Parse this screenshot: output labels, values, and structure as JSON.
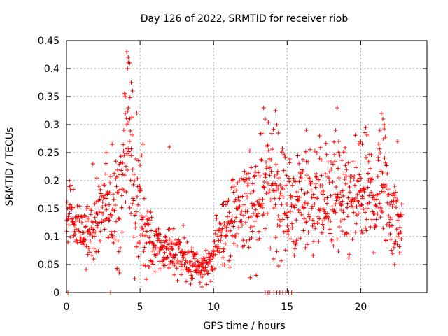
{
  "chart_data": {
    "type": "scatter",
    "title": "Day 126 of 2022, SRMTID for receiver riob",
    "xlabel": "GPS time / hours",
    "ylabel": "SRMTID / TECUs",
    "xlim": [
      0,
      24.5
    ],
    "ylim": [
      0,
      0.45
    ],
    "xticks": [
      0,
      5,
      10,
      15,
      20
    ],
    "yticks": [
      0,
      0.05,
      0.1,
      0.15,
      0.2,
      0.25,
      0.3,
      0.35,
      0.4,
      0.45
    ],
    "xtick_labels": [
      "0",
      "5",
      "10",
      "15",
      "20"
    ],
    "ytick_labels": [
      "0",
      "0.05",
      "0.1",
      "0.15",
      "0.2",
      "0.25",
      "0.3",
      "0.35",
      "0.4",
      "0.45"
    ],
    "grid": true,
    "marker": "plus",
    "color": "#ff0000",
    "series": [
      {
        "envelope": [
          [
            0.0,
            0.13,
            0.02
          ],
          [
            0.3,
            0.15,
            0.03
          ],
          [
            0.7,
            0.12,
            0.025
          ],
          [
            1.2,
            0.11,
            0.025
          ],
          [
            1.8,
            0.12,
            0.03
          ],
          [
            2.3,
            0.14,
            0.035
          ],
          [
            2.8,
            0.16,
            0.04
          ],
          [
            3.2,
            0.15,
            0.04
          ],
          [
            3.6,
            0.18,
            0.05
          ],
          [
            4.0,
            0.25,
            0.08
          ],
          [
            4.3,
            0.28,
            0.09
          ],
          [
            4.6,
            0.18,
            0.06
          ],
          [
            5.0,
            0.14,
            0.05
          ],
          [
            5.5,
            0.1,
            0.035
          ],
          [
            6.0,
            0.08,
            0.025
          ],
          [
            6.5,
            0.075,
            0.02
          ],
          [
            7.0,
            0.08,
            0.02
          ],
          [
            7.5,
            0.07,
            0.02
          ],
          [
            8.0,
            0.065,
            0.02
          ],
          [
            8.5,
            0.055,
            0.018
          ],
          [
            9.0,
            0.045,
            0.015
          ],
          [
            9.5,
            0.045,
            0.015
          ],
          [
            9.9,
            0.05,
            0.015
          ],
          [
            10.3,
            0.11,
            0.03
          ],
          [
            10.8,
            0.12,
            0.03
          ],
          [
            11.3,
            0.13,
            0.035
          ],
          [
            11.8,
            0.15,
            0.04
          ],
          [
            12.3,
            0.16,
            0.045
          ],
          [
            12.8,
            0.16,
            0.045
          ],
          [
            13.2,
            0.18,
            0.05
          ],
          [
            13.6,
            0.2,
            0.05
          ],
          [
            14.0,
            0.19,
            0.05
          ],
          [
            14.5,
            0.17,
            0.05
          ],
          [
            15.0,
            0.16,
            0.045
          ],
          [
            15.5,
            0.15,
            0.045
          ],
          [
            16.0,
            0.17,
            0.045
          ],
          [
            16.5,
            0.17,
            0.045
          ],
          [
            17.0,
            0.17,
            0.045
          ],
          [
            17.5,
            0.16,
            0.045
          ],
          [
            18.0,
            0.17,
            0.05
          ],
          [
            18.5,
            0.16,
            0.05
          ],
          [
            19.0,
            0.15,
            0.045
          ],
          [
            19.5,
            0.16,
            0.045
          ],
          [
            20.0,
            0.17,
            0.05
          ],
          [
            20.5,
            0.17,
            0.05
          ],
          [
            21.0,
            0.17,
            0.05
          ],
          [
            21.5,
            0.2,
            0.06
          ],
          [
            22.0,
            0.15,
            0.045
          ],
          [
            22.5,
            0.13,
            0.035
          ],
          [
            22.8,
            0.13,
            0.03
          ]
        ],
        "highlight_points": [
          [
            4.1,
            0.43
          ],
          [
            4.2,
            0.42
          ],
          [
            4.3,
            0.41
          ],
          [
            4.15,
            0.4
          ],
          [
            4.4,
            0.375
          ],
          [
            4.0,
            0.35
          ],
          [
            4.5,
            0.36
          ],
          [
            4.2,
            0.33
          ],
          [
            4.0,
            0.32
          ],
          [
            4.3,
            0.31
          ],
          [
            4.1,
            0.3
          ],
          [
            3.9,
            0.29
          ],
          [
            13.4,
            0.33
          ],
          [
            13.5,
            0.31
          ],
          [
            14.2,
            0.325
          ],
          [
            14.3,
            0.3
          ],
          [
            14.4,
            0.285
          ],
          [
            18.4,
            0.33
          ],
          [
            18.3,
            0.29
          ],
          [
            18.5,
            0.27
          ],
          [
            21.4,
            0.32
          ],
          [
            21.5,
            0.31
          ],
          [
            21.6,
            0.3
          ],
          [
            21.3,
            0.29
          ],
          [
            3.1,
            0.265
          ],
          [
            7.0,
            0.26
          ],
          [
            5.2,
            0.265
          ],
          [
            16.3,
            0.29
          ],
          [
            17.2,
            0.28
          ],
          [
            20.0,
            0.27
          ],
          [
            20.1,
            0.265
          ],
          [
            22.5,
            0.27
          ],
          [
            2.7,
            0.25
          ],
          [
            1.8,
            0.23
          ],
          [
            0.2,
            0.2
          ],
          [
            6.7,
            0.09
          ],
          [
            9.2,
            0.01
          ],
          [
            8.5,
            0.025
          ],
          [
            9.8,
            0.02
          ],
          [
            3.5,
            0.04
          ],
          [
            3.6,
            0.035
          ],
          [
            22.3,
            0.05
          ]
        ],
        "zero_points": [
          0.1,
          3.0,
          13.5,
          13.7,
          13.8,
          14.1,
          14.3,
          14.5,
          14.7,
          14.9,
          15.1,
          15.3
        ],
        "step_hours": 0.02
      }
    ]
  }
}
